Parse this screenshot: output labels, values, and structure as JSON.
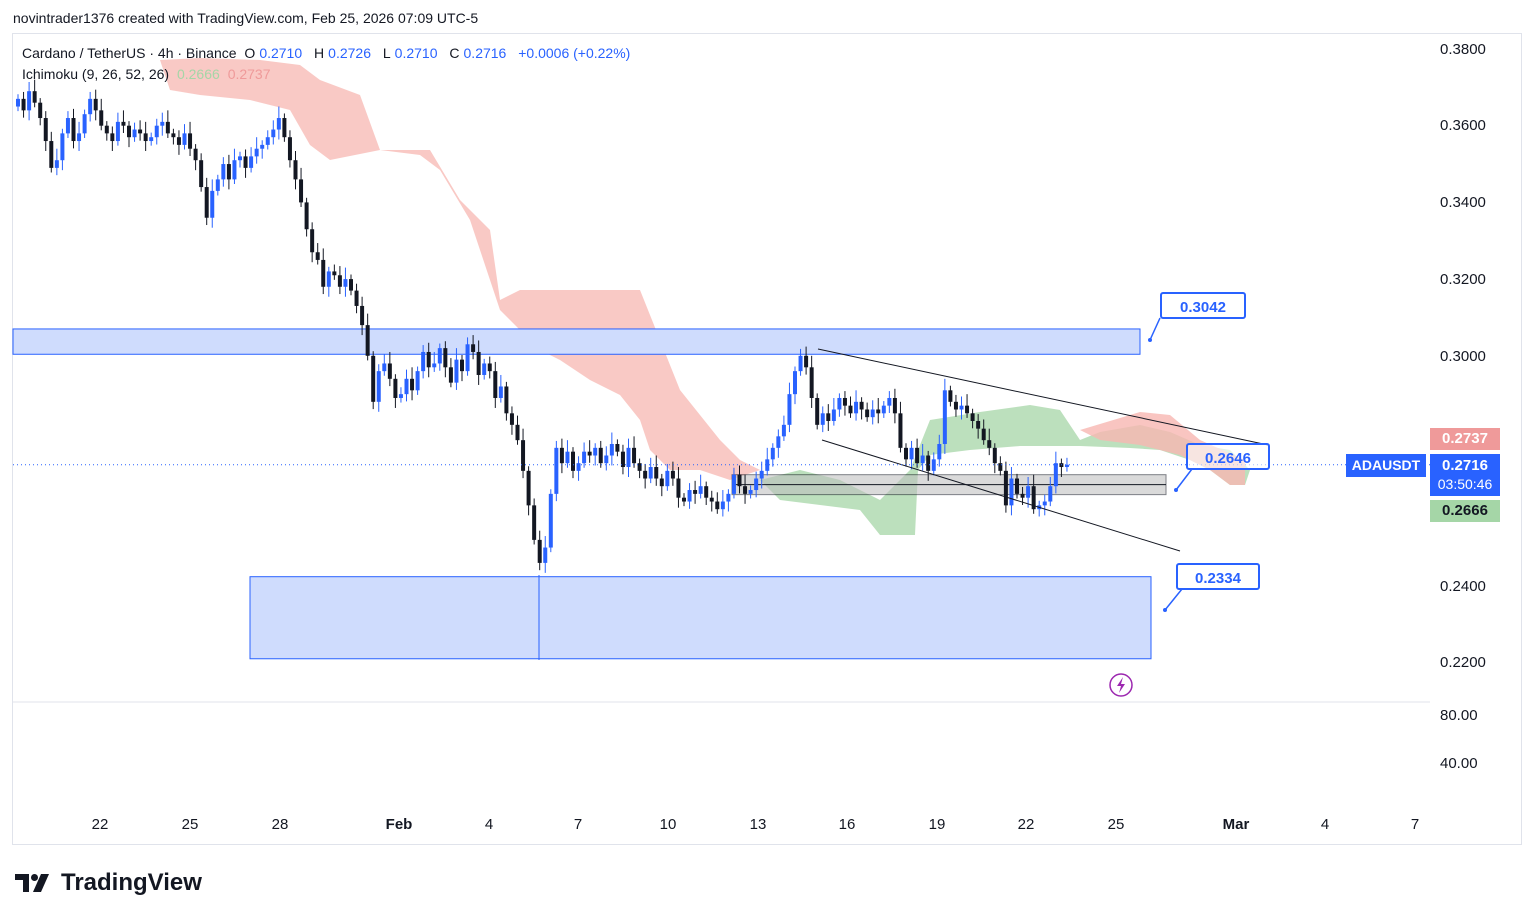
{
  "header": {
    "author": "novintrader1376",
    "created_with": "created with TradingView.com, Feb 25, 2026 07:09 UTC-5"
  },
  "legend": {
    "symbol_title": "Cardano / TetherUS · 4h · Binance",
    "o_label": "O",
    "o": "0.2710",
    "h_label": "H",
    "h": "0.2726",
    "l_label": "L",
    "l": "0.2710",
    "c_label": "C",
    "c": "0.2716",
    "change": "+0.0006 (+0.22%)",
    "indicator": "Ichimoku (9, 26, 52, 26)",
    "lead_a": "0.2666",
    "lead_b": "0.2737"
  },
  "price_axis": {
    "ticks": [
      "0.3800",
      "0.3600",
      "0.3400",
      "0.3200",
      "0.3000",
      "0.2400",
      "0.2200"
    ],
    "osc_ticks": [
      "80.00",
      "40.00"
    ]
  },
  "time_axis": {
    "ticks": [
      "22",
      "25",
      "28",
      "Feb",
      "4",
      "7",
      "10",
      "13",
      "16",
      "19",
      "22",
      "25",
      "Mar",
      "4",
      "7"
    ]
  },
  "tags": {
    "symbol": "ADAUSDT",
    "last_price": "0.2716",
    "countdown": "03:50:46",
    "span_b": "0.2737",
    "span_a": "0.2666"
  },
  "callouts": {
    "upper": "0.3042",
    "middle": "0.2646",
    "lower": "0.2334"
  },
  "colors": {
    "up": "#2962ff",
    "down": "#131722",
    "cloud_bear": "#f7b7b2",
    "cloud_bull": "#a5d6a7",
    "zone": "#cfdcfd",
    "last_price": "#2962ff",
    "span_b_tag": "#ef9a9a",
    "span_a_tag": "#a5d6a7"
  },
  "brand": "TradingView",
  "chart_data": {
    "type": "candlestick",
    "title": "Cardano / TetherUS · 4h · Binance",
    "timeframe": "4h",
    "ylim": [
      0.206,
      0.386
    ],
    "zones": [
      {
        "name": "upper-resistance-zone",
        "low": 0.3004,
        "high": 0.307
      },
      {
        "name": "lower-support-zone",
        "low": 0.221,
        "high": 0.2424
      },
      {
        "name": "mid-consolidation-box",
        "low": 0.2638,
        "high": 0.269
      }
    ],
    "closes": [
      0.367,
      0.364,
      0.369,
      0.366,
      0.362,
      0.356,
      0.349,
      0.351,
      0.358,
      0.362,
      0.356,
      0.358,
      0.363,
      0.367,
      0.364,
      0.36,
      0.358,
      0.356,
      0.361,
      0.36,
      0.357,
      0.359,
      0.358,
      0.356,
      0.357,
      0.36,
      0.361,
      0.358,
      0.357,
      0.355,
      0.358,
      0.354,
      0.351,
      0.344,
      0.336,
      0.343,
      0.346,
      0.35,
      0.346,
      0.351,
      0.352,
      0.349,
      0.352,
      0.354,
      0.355,
      0.357,
      0.359,
      0.362,
      0.357,
      0.351,
      0.346,
      0.34,
      0.333,
      0.327,
      0.325,
      0.318,
      0.322,
      0.321,
      0.318,
      0.32,
      0.317,
      0.313,
      0.308,
      0.3,
      0.288,
      0.296,
      0.298,
      0.294,
      0.289,
      0.29,
      0.294,
      0.291,
      0.296,
      0.301,
      0.297,
      0.298,
      0.302,
      0.297,
      0.293,
      0.299,
      0.296,
      0.303,
      0.301,
      0.295,
      0.298,
      0.296,
      0.289,
      0.292,
      0.285,
      0.282,
      0.278,
      0.27,
      0.261,
      0.252,
      0.246,
      0.25,
      0.264,
      0.276,
      0.272,
      0.275,
      0.27,
      0.272,
      0.275,
      0.274,
      0.276,
      0.272,
      0.274,
      0.277,
      0.275,
      0.271,
      0.276,
      0.272,
      0.27,
      0.268,
      0.271,
      0.268,
      0.266,
      0.27,
      0.268,
      0.263,
      0.262,
      0.265,
      0.264,
      0.266,
      0.263,
      0.262,
      0.26,
      0.262,
      0.264,
      0.269,
      0.266,
      0.264,
      0.265,
      0.268,
      0.27,
      0.273,
      0.276,
      0.279,
      0.282,
      0.29,
      0.296,
      0.3,
      0.297,
      0.289,
      0.282,
      0.285,
      0.283,
      0.286,
      0.289,
      0.287,
      0.285,
      0.288,
      0.286,
      0.284,
      0.286,
      0.285,
      0.287,
      0.289,
      0.285,
      0.276,
      0.273,
      0.276,
      0.272,
      0.274,
      0.27,
      0.273,
      0.277,
      0.291,
      0.288,
      0.286,
      0.287,
      0.285,
      0.283,
      0.281,
      0.278,
      0.276,
      0.272,
      0.27,
      0.261,
      0.268,
      0.264,
      0.263,
      0.266,
      0.26,
      0.261,
      0.262,
      0.266,
      0.272,
      0.271,
      0.2716
    ]
  }
}
